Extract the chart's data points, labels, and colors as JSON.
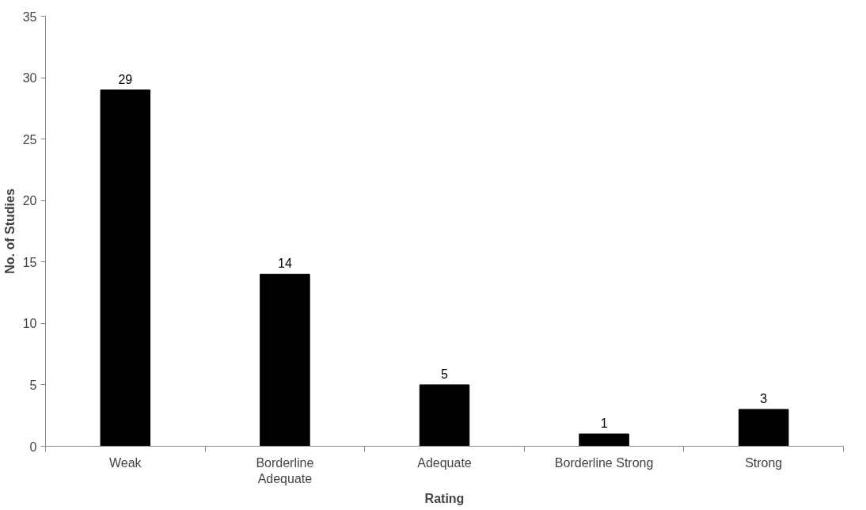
{
  "chart_data": {
    "type": "bar",
    "xlabel": "Rating",
    "ylabel": "No. of Studies",
    "categories": [
      "Weak",
      "Borderline Adequate",
      "Adequate",
      "Borderline Strong",
      "Strong"
    ],
    "values": [
      29,
      14,
      5,
      1,
      3
    ],
    "color": "#000000",
    "ylim": [
      0,
      35
    ],
    "yticks": [
      0,
      5,
      10,
      15,
      20,
      25,
      30,
      35
    ],
    "grid": false,
    "data_labels": true
  }
}
